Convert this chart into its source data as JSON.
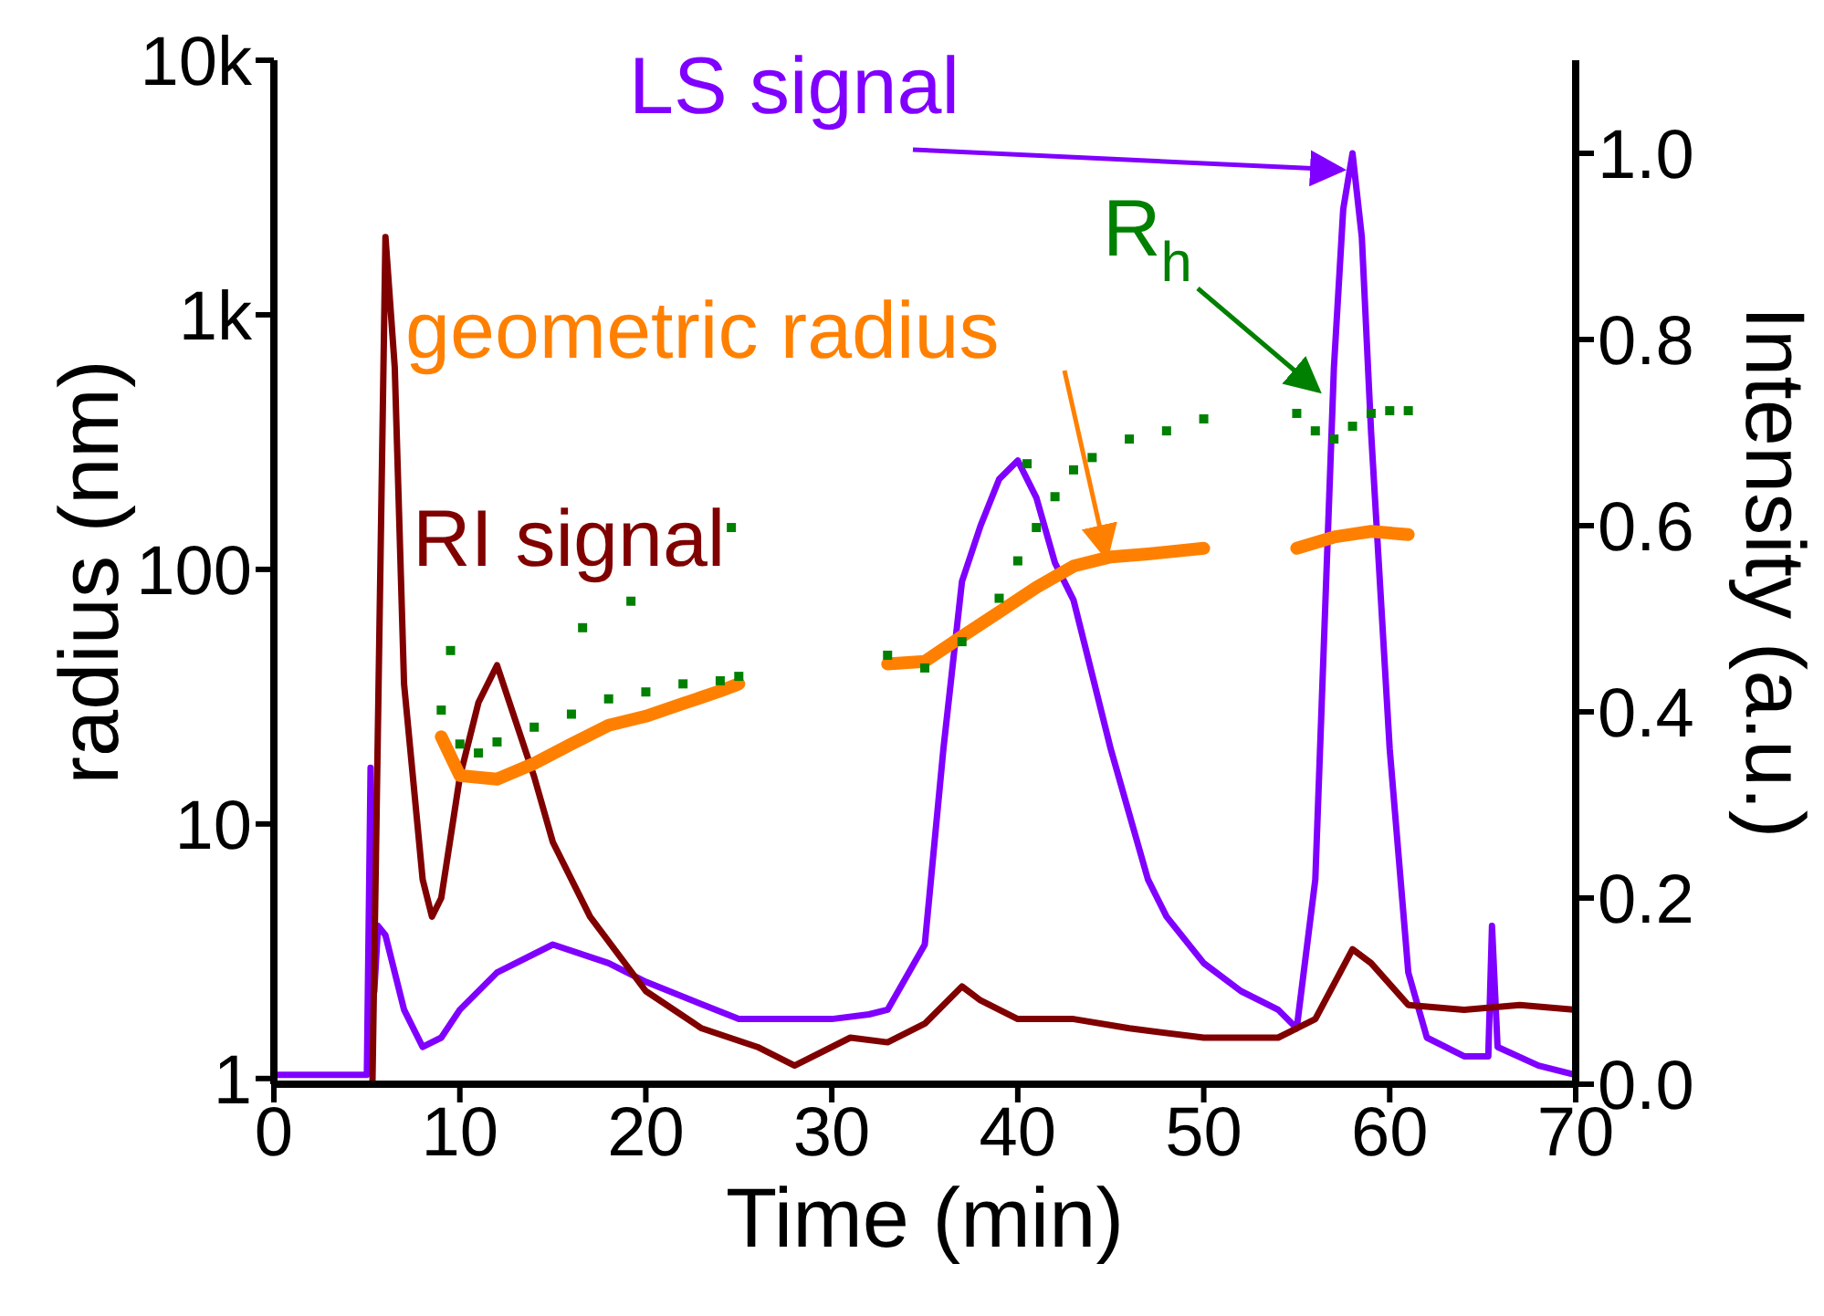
{
  "chart_data": {
    "type": "line",
    "xlabel": "Time (min)",
    "ylabel": "radius (nm)",
    "y2label": "Intensity (a.u.)",
    "xlim": [
      0,
      70
    ],
    "xticks": [
      0,
      10,
      20,
      30,
      40,
      50,
      60,
      70
    ],
    "ylim": [
      0.95,
      10000
    ],
    "yticks": [
      1,
      10,
      100,
      {
        "value": 1000,
        "label": "1k"
      },
      {
        "value": 10000,
        "label": "10k"
      }
    ],
    "y2lim": [
      0,
      1.1
    ],
    "y2ticks": [
      {
        "value": 0,
        "label": "0.0"
      },
      0.2,
      0.4,
      0.6,
      0.8,
      {
        "value": 1,
        "label": "1.0"
      }
    ],
    "log": "y",
    "marker": "none",
    "series": [
      {
        "name": "LS signal",
        "axis": "y2",
        "color": "#8000ff",
        "x": [
          0,
          5,
          5.2,
          5.4,
          5.6,
          6,
          7,
          8,
          9,
          10,
          12,
          15,
          18,
          20,
          25,
          30,
          32,
          33,
          35,
          36,
          37,
          38,
          39,
          40,
          41,
          42,
          43,
          44,
          45,
          46,
          47,
          48,
          50,
          52,
          54,
          55,
          56,
          57,
          57.5,
          58,
          58.5,
          59,
          60,
          61,
          62,
          64,
          65.3,
          65.5,
          65.8,
          68,
          70
        ],
        "values": [
          0.01,
          0.01,
          0.34,
          0.1,
          0.17,
          0.16,
          0.08,
          0.04,
          0.05,
          0.08,
          0.12,
          0.15,
          0.13,
          0.11,
          0.07,
          0.07,
          0.075,
          0.08,
          0.15,
          0.36,
          0.54,
          0.6,
          0.65,
          0.67,
          0.63,
          0.56,
          0.52,
          0.44,
          0.36,
          0.29,
          0.22,
          0.18,
          0.13,
          0.1,
          0.08,
          0.06,
          0.22,
          0.77,
          0.94,
          1.0,
          0.91,
          0.7,
          0.36,
          0.12,
          0.05,
          0.03,
          0.03,
          0.17,
          0.04,
          0.02,
          0.01
        ]
      },
      {
        "name": "RI signal",
        "axis": "y2",
        "color": "#800000",
        "x": [
          5.3,
          6,
          6.5,
          7,
          8,
          8.5,
          9,
          10,
          11,
          12,
          13,
          14,
          15,
          17,
          20,
          23,
          26,
          28,
          31,
          33,
          35,
          37,
          38,
          40,
          43,
          46,
          50,
          54,
          56,
          58,
          59,
          61,
          64,
          67,
          70
        ],
        "values": [
          0,
          0.91,
          0.77,
          0.43,
          0.22,
          0.18,
          0.2,
          0.33,
          0.41,
          0.45,
          0.39,
          0.33,
          0.26,
          0.18,
          0.1,
          0.06,
          0.04,
          0.02,
          0.05,
          0.045,
          0.065,
          0.105,
          0.09,
          0.07,
          0.07,
          0.06,
          0.05,
          0.05,
          0.07,
          0.145,
          0.13,
          0.085,
          0.08,
          0.085,
          0.08
        ]
      },
      {
        "name": "geometric radius",
        "color": "#ff8000",
        "x": [
          9,
          10,
          12,
          14,
          16,
          18,
          20,
          22,
          24,
          25,
          29,
          33,
          35,
          37,
          39,
          41,
          43,
          45,
          47,
          50,
          52.5,
          55,
          57,
          59,
          61
        ],
        "values": [
          22,
          15.5,
          15,
          17.3,
          20.6,
          24.4,
          26.5,
          29.7,
          33.3,
          35.5,
          null,
          42.5,
          43.5,
          54.5,
          68,
          85,
          103,
          112,
          115,
          121,
          null,
          121,
          134,
          141,
          137
        ]
      },
      {
        "name": "R$_{h}$",
        "type": "scatter",
        "marker": "square",
        "color": "#008000",
        "x": [
          9,
          9.5,
          10,
          11,
          12,
          14,
          16,
          16.6,
          18,
          19.2,
          20,
          22,
          24,
          24.6,
          25,
          33,
          35,
          37,
          39,
          40,
          40.5,
          41,
          42,
          43,
          44,
          46,
          48,
          50,
          55,
          56,
          57,
          58,
          59,
          60,
          61
        ],
        "values": [
          28,
          48,
          20.6,
          19,
          21,
          24,
          27,
          59,
          31,
          75,
          33,
          35.5,
          36.5,
          146,
          38,
          46,
          41,
          52,
          77,
          108,
          260,
          146,
          193,
          246,
          275,
          325,
          350,
          390,
          410,
          350,
          325,
          365,
          410,
          420,
          420
        ]
      }
    ]
  }
}
